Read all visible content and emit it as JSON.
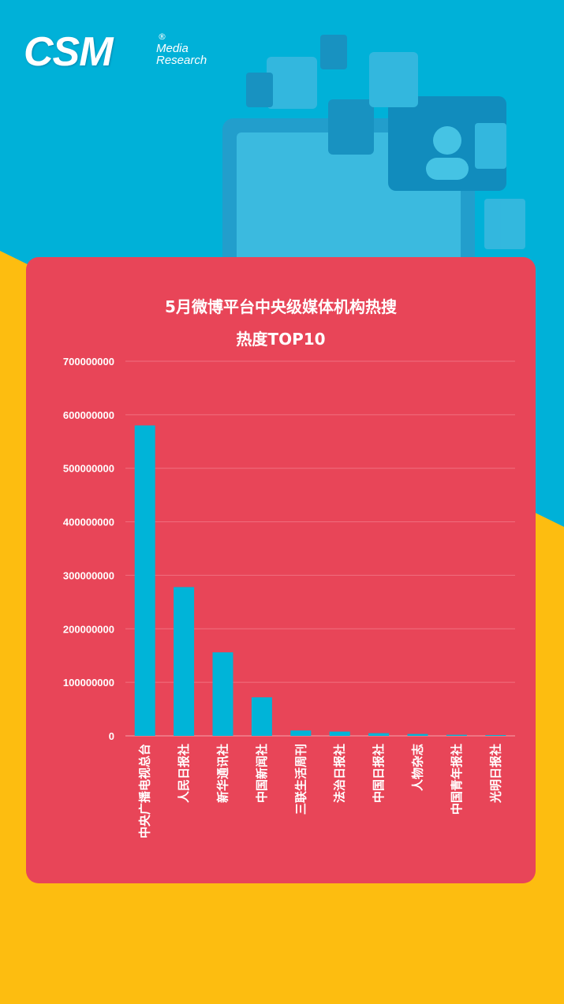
{
  "brand": {
    "name": "CSM",
    "reg_mark": "®",
    "line1": "Media",
    "line2": "Research"
  },
  "colors": {
    "top_background": "#00b1d8",
    "bottom_background": "#fdbd10",
    "card": "#e84558",
    "bar": "#00b4d8",
    "text": "#ffffff"
  },
  "chart_data": {
    "type": "bar",
    "title_line1": "5月微博平台中央级媒体机构热搜",
    "title_line2": "热度TOP10",
    "categories": [
      "中央广播电视总台",
      "人民日报社",
      "新华通讯社",
      "中国新闻社",
      "三联生活周刊",
      "法治日报社",
      "中国日报社",
      "人物杂志",
      "中国青年报社",
      "光明日报社"
    ],
    "values": [
      580000000,
      278000000,
      156000000,
      72000000,
      10000000,
      8000000,
      5000000,
      3500000,
      2000000,
      1500000
    ],
    "ylim": [
      0,
      700000000
    ],
    "yticks": [
      "0",
      "100000000",
      "200000000",
      "300000000",
      "400000000",
      "500000000",
      "600000000",
      "700000000"
    ],
    "xlabel": "",
    "ylabel": "",
    "grid": true,
    "legend": "none"
  }
}
